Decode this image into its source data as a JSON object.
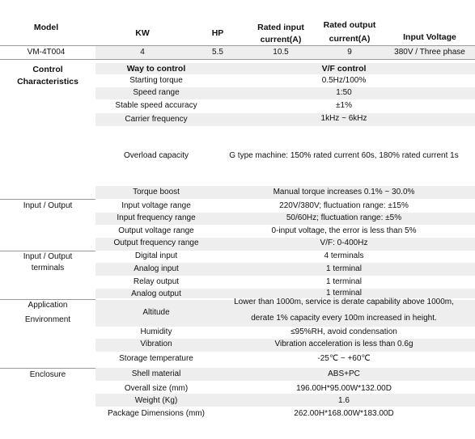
{
  "header": {
    "model": "Model",
    "kw": "KW",
    "hp": "HP",
    "rated_input": [
      "Rated input",
      "current(A)"
    ],
    "rated_output": [
      "Rated output",
      "current(A)"
    ],
    "input_voltage": "Input Voltage"
  },
  "model_row": {
    "model": "VM-4T004",
    "kw": "4",
    "hp": "5.5",
    "rated_input": "10.5",
    "rated_output": "9",
    "input_voltage": "380V / Three phase"
  },
  "sections": {
    "control": [
      "Control",
      "Characteristics"
    ],
    "io": "Input / Output",
    "io_terminals": [
      "Input / Output",
      "terminals"
    ],
    "application": [
      "Application",
      "Environment"
    ],
    "enclosure": "Enclosure"
  },
  "control": {
    "way_label": "Way to control",
    "way_value": "V/F control",
    "starting_torque": {
      "label": "Starting torque",
      "value": "0.5Hz/100%"
    },
    "speed_range": {
      "label": "Speed range",
      "value": "1:50"
    },
    "stable_speed": {
      "label": "Stable speed accuracy",
      "value": "±1%"
    },
    "carrier_freq": {
      "label": "Carrier frequency",
      "value": "1kHz ~ 6kHz"
    },
    "overload": {
      "label": "Overload capacity",
      "value": "G type machine: 150% rated current 60s, 180% rated current 1s"
    },
    "torque_boost": {
      "label": "Torque boost",
      "value": "Manual torque increases 0.1% ~ 30.0%"
    }
  },
  "io": {
    "in_voltage": {
      "label": "Input voltage range",
      "value": "220V/380V; fluctuation range: ±15%"
    },
    "in_freq": {
      "label": "Input frequency range",
      "value": "50/60Hz; fluctuation range: ±5%"
    },
    "out_voltage": {
      "label": "Output voltage range",
      "value": "0-input voltage, the error is less than 5%"
    },
    "out_freq": {
      "label": "Output frequency range",
      "value": "V/F: 0-400Hz"
    }
  },
  "terminals": {
    "digital_in": {
      "label": "Digital input",
      "value": "4 terminals"
    },
    "analog_in": {
      "label": "Analog input",
      "value": "1 terminal"
    },
    "relay_out": {
      "label": "Relay output",
      "value": "1 terminal"
    },
    "analog_out": {
      "label": "Analog output",
      "value": "1 terminal"
    }
  },
  "environment": {
    "altitude": {
      "label": "Altitude",
      "value": [
        "Lower than 1000m, service is derate capability above 1000m,",
        "derate 1% capacity every 100m increased in height."
      ]
    },
    "humidity": {
      "label": "Humidity",
      "value": "≤95%RH, avoid condensation"
    },
    "vibration": {
      "label": "Vibration",
      "value": "Vibration acceleration is less than 0.6g"
    },
    "storage_temp": {
      "label": "Storage temperature",
      "value": "-25℃ ~ +60℃"
    }
  },
  "enclosure": {
    "shell": {
      "label": "Shell material",
      "value": "ABS+PC"
    },
    "size": {
      "label": "Overall size (mm)",
      "value": "196.00H*95.00W*132.00D"
    },
    "weight": {
      "label": "Weight (Kg)",
      "value": "1.6"
    },
    "package": {
      "label": "Package Dimensions (mm)",
      "value": "262.00H*168.00W*183.00D"
    }
  }
}
